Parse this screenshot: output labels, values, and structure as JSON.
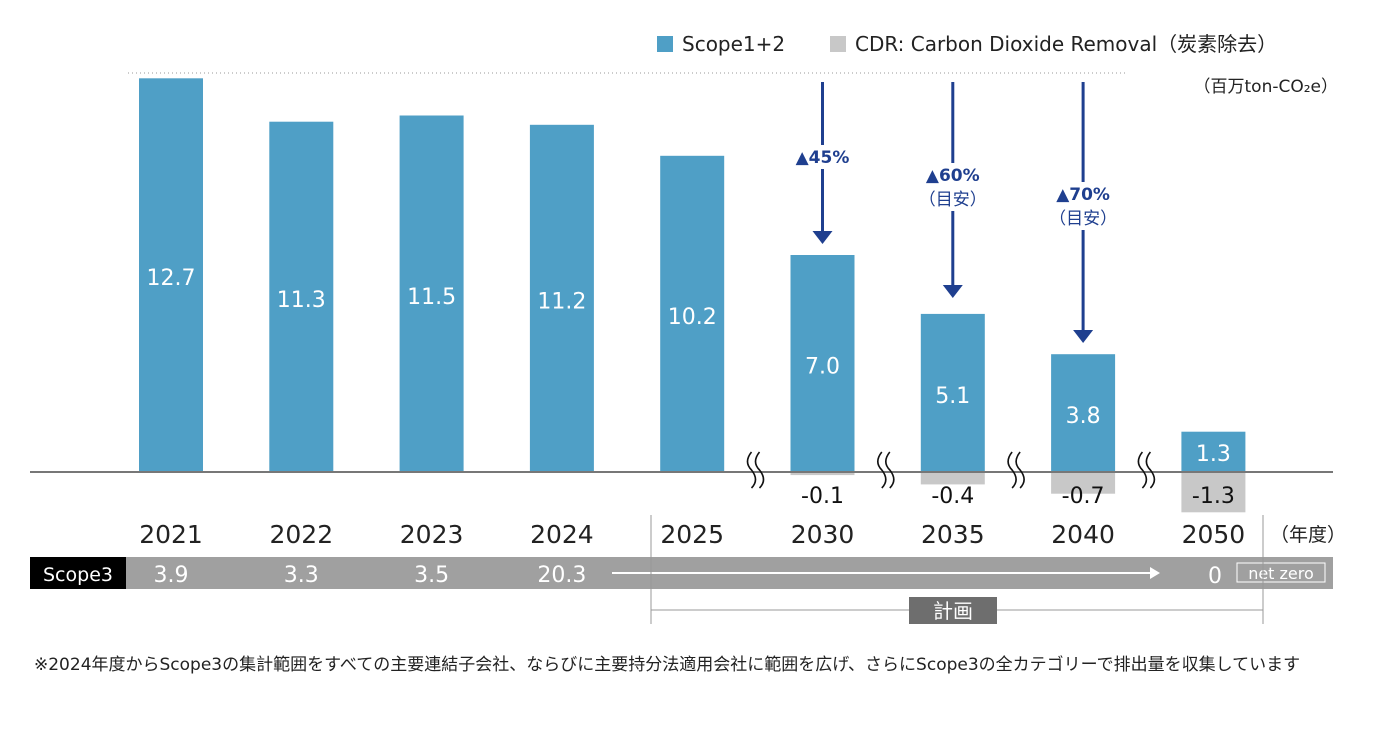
{
  "chart_data": {
    "type": "bar",
    "unit": "（百万ton-CO₂e）",
    "x_suffix": "（年度）",
    "categories": [
      "2021",
      "2022",
      "2023",
      "2024",
      "2025",
      "2030",
      "2035",
      "2040",
      "2050"
    ],
    "series": [
      {
        "name": "Scope1+2",
        "color": "#4f9fc6",
        "values": [
          12.7,
          11.3,
          11.5,
          11.2,
          10.2,
          7.0,
          5.1,
          3.8,
          1.3
        ]
      },
      {
        "name": "CDR: Carbon Dioxide Removal（炭素除去）",
        "color": "#c8c8c8",
        "values": [
          null,
          null,
          null,
          null,
          null,
          -0.1,
          -0.4,
          -0.7,
          -1.3
        ]
      }
    ],
    "axis_breaks_before": [
      "2030",
      "2035",
      "2040",
      "2050"
    ],
    "reduction_targets": [
      {
        "category": "2030",
        "label": "▲45%",
        "sub": ""
      },
      {
        "category": "2035",
        "label": "▲60%",
        "sub": "（目安）"
      },
      {
        "category": "2040",
        "label": "▲70%",
        "sub": "（目安）"
      }
    ],
    "scope3": {
      "label": "Scope3",
      "values": [
        "3.9",
        "3.3",
        "3.5",
        "20.3"
      ],
      "target_value": "0",
      "target_badge": "net zero"
    },
    "plan_label": "計画",
    "colors": {
      "arrow": "#1f3f8f",
      "scope3_bar": "#a0a0a0",
      "plan_badge": "#6e6e6e"
    }
  },
  "footnote": "※2024年度からScope3の集計範囲をすべての主要連結子会社、ならびに主要持分法適用会社に範囲を広げ、さらにScope3の全カテゴリーで排出量を収集しています"
}
